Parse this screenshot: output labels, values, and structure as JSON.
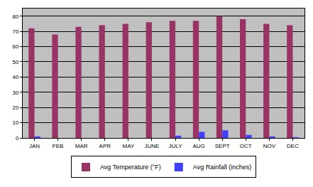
{
  "chart_data": {
    "type": "bar",
    "categories": [
      "JAN",
      "FEB",
      "MAR",
      "APR",
      "MAY",
      "JUNE",
      "JULY",
      "AUG",
      "SEPT",
      "OCT",
      "NOV",
      "DEC"
    ],
    "series": [
      {
        "name": "Avg Temperature (°F)",
        "color": "#993366",
        "values": [
          72,
          68,
          73,
          74,
          75,
          76,
          77,
          77,
          80,
          78,
          75,
          74
        ]
      },
      {
        "name": "Avg Rainfall (inches)",
        "color": "#3f3fff",
        "values": [
          1,
          0,
          0,
          0,
          0,
          0,
          1.5,
          4,
          5,
          2,
          1,
          0.5
        ]
      }
    ],
    "ylim": [
      0,
      85
    ],
    "yticks": [
      0,
      10,
      20,
      30,
      40,
      50,
      60,
      70,
      80
    ],
    "grid": true,
    "legend": "bottom"
  }
}
